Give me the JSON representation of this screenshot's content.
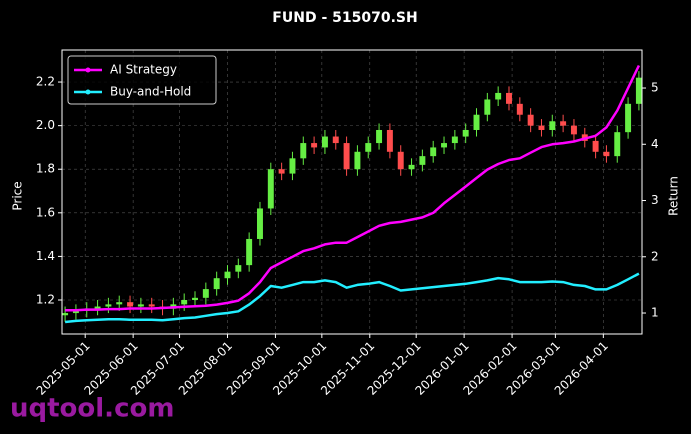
{
  "chart_data": {
    "type": "candlestick",
    "title": "FUND - 515070.SH",
    "ylabel": "Price",
    "y2label": "Return",
    "watermark": "uqtool.com",
    "x": [
      "2025-04-18",
      "2025-04-25",
      "2025-05-02",
      "2025-05-09",
      "2025-05-16",
      "2025-05-23",
      "2025-05-30",
      "2025-06-06",
      "2025-06-13",
      "2025-06-20",
      "2025-06-27",
      "2025-07-04",
      "2025-07-11",
      "2025-07-18",
      "2025-07-25",
      "2025-08-01",
      "2025-08-08",
      "2025-08-15",
      "2025-08-22",
      "2025-08-29",
      "2025-09-05",
      "2025-09-12",
      "2025-09-19",
      "2025-09-26",
      "2025-10-03",
      "2025-10-10",
      "2025-10-17",
      "2025-10-24",
      "2025-10-31",
      "2025-11-07",
      "2025-11-14",
      "2025-11-21",
      "2025-11-28",
      "2025-12-05",
      "2025-12-12",
      "2025-12-19",
      "2025-12-26",
      "2026-01-02",
      "2026-01-09",
      "2026-01-16",
      "2026-01-23",
      "2026-01-30",
      "2026-02-06",
      "2026-02-13",
      "2026-02-20",
      "2026-02-27",
      "2026-03-06",
      "2026-03-13",
      "2026-03-20",
      "2026-03-27",
      "2026-04-03",
      "2026-04-10",
      "2026-04-17",
      "2026-04-24"
    ],
    "open": [
      1.13,
      1.14,
      1.15,
      1.16,
      1.17,
      1.18,
      1.19,
      1.17,
      1.18,
      1.17,
      1.16,
      1.18,
      1.2,
      1.21,
      1.25,
      1.3,
      1.33,
      1.36,
      1.48,
      1.62,
      1.8,
      1.78,
      1.85,
      1.92,
      1.9,
      1.95,
      1.92,
      1.8,
      1.88,
      1.92,
      1.98,
      1.88,
      1.8,
      1.82,
      1.86,
      1.9,
      1.92,
      1.95,
      1.98,
      2.05,
      2.12,
      2.15,
      2.1,
      2.05,
      2.0,
      1.98,
      2.02,
      2.0,
      1.96,
      1.93,
      1.88,
      1.86,
      1.97,
      2.1
    ],
    "high": [
      1.17,
      1.18,
      1.19,
      1.2,
      1.21,
      1.22,
      1.22,
      1.21,
      1.21,
      1.2,
      1.21,
      1.23,
      1.24,
      1.28,
      1.33,
      1.36,
      1.39,
      1.51,
      1.65,
      1.83,
      1.83,
      1.88,
      1.95,
      1.95,
      1.98,
      1.98,
      1.95,
      1.91,
      1.95,
      2.01,
      2.01,
      1.91,
      1.85,
      1.89,
      1.93,
      1.95,
      1.98,
      2.01,
      2.08,
      2.15,
      2.18,
      2.18,
      2.13,
      2.08,
      2.03,
      2.05,
      2.05,
      2.03,
      1.99,
      1.96,
      1.91,
      2.0,
      2.13,
      2.25
    ],
    "low": [
      1.1,
      1.11,
      1.12,
      1.13,
      1.14,
      1.15,
      1.14,
      1.14,
      1.14,
      1.13,
      1.13,
      1.15,
      1.17,
      1.18,
      1.22,
      1.27,
      1.3,
      1.33,
      1.45,
      1.59,
      1.75,
      1.75,
      1.82,
      1.87,
      1.87,
      1.89,
      1.77,
      1.77,
      1.85,
      1.89,
      1.85,
      1.77,
      1.77,
      1.79,
      1.83,
      1.87,
      1.89,
      1.92,
      1.95,
      2.02,
      2.09,
      2.07,
      2.02,
      1.97,
      1.95,
      1.95,
      1.97,
      1.93,
      1.9,
      1.85,
      1.83,
      1.83,
      1.94,
      2.07
    ],
    "close": [
      1.14,
      1.15,
      1.16,
      1.17,
      1.18,
      1.19,
      1.17,
      1.18,
      1.17,
      1.16,
      1.18,
      1.2,
      1.21,
      1.25,
      1.3,
      1.33,
      1.36,
      1.48,
      1.62,
      1.8,
      1.78,
      1.85,
      1.92,
      1.9,
      1.95,
      1.92,
      1.8,
      1.88,
      1.92,
      1.98,
      1.88,
      1.8,
      1.82,
      1.86,
      1.9,
      1.92,
      1.95,
      1.98,
      2.05,
      2.12,
      2.15,
      2.1,
      2.05,
      2.0,
      1.98,
      2.02,
      2.0,
      1.96,
      1.93,
      1.88,
      1.86,
      1.97,
      2.1,
      2.22
    ],
    "up_color": "#66ee44",
    "down_color": "#ff4d4d",
    "series": [
      {
        "name": "AI Strategy",
        "color": "#ff00ff",
        "axis": "y2",
        "values": [
          1.05,
          1.05,
          1.06,
          1.06,
          1.07,
          1.07,
          1.08,
          1.08,
          1.08,
          1.09,
          1.1,
          1.11,
          1.12,
          1.13,
          1.15,
          1.18,
          1.22,
          1.35,
          1.55,
          1.8,
          1.9,
          2.0,
          2.1,
          2.15,
          2.22,
          2.25,
          2.25,
          2.35,
          2.45,
          2.55,
          2.6,
          2.62,
          2.66,
          2.7,
          2.78,
          2.95,
          3.1,
          3.25,
          3.4,
          3.55,
          3.65,
          3.72,
          3.75,
          3.85,
          3.95,
          4.0,
          4.02,
          4.05,
          4.1,
          4.15,
          4.3,
          4.6,
          5.0,
          5.4
        ]
      },
      {
        "name": "Buy-and-Hold",
        "color": "#22eeff",
        "axis": "y2",
        "values": [
          0.84,
          0.86,
          0.87,
          0.88,
          0.89,
          0.89,
          0.88,
          0.88,
          0.88,
          0.87,
          0.89,
          0.91,
          0.92,
          0.95,
          0.98,
          1.0,
          1.03,
          1.15,
          1.3,
          1.48,
          1.45,
          1.5,
          1.55,
          1.55,
          1.58,
          1.55,
          1.45,
          1.5,
          1.52,
          1.55,
          1.48,
          1.4,
          1.42,
          1.44,
          1.46,
          1.48,
          1.5,
          1.52,
          1.55,
          1.58,
          1.62,
          1.6,
          1.55,
          1.55,
          1.55,
          1.56,
          1.55,
          1.5,
          1.48,
          1.42,
          1.42,
          1.5,
          1.6,
          1.7
        ]
      }
    ],
    "xlim": [
      "2025-04-16",
      "2026-04-26"
    ],
    "xticks": [
      "2025-05-01",
      "2025-06-01",
      "2025-07-01",
      "2025-08-01",
      "2025-09-01",
      "2025-10-01",
      "2025-11-01",
      "2025-12-01",
      "2026-01-01",
      "2026-02-01",
      "2026-03-01",
      "2026-04-01"
    ],
    "ylim": [
      1.044,
      2.347
    ],
    "yticks": [
      1.2,
      1.4,
      1.6,
      1.8,
      {
        "value": 2,
        "label": "2.0"
      },
      2.2
    ],
    "y2lim": [
      0.627,
      5.676
    ],
    "y2ticks": [
      1,
      2,
      3,
      4,
      5
    ],
    "grid": true,
    "legend": "upper-left"
  }
}
